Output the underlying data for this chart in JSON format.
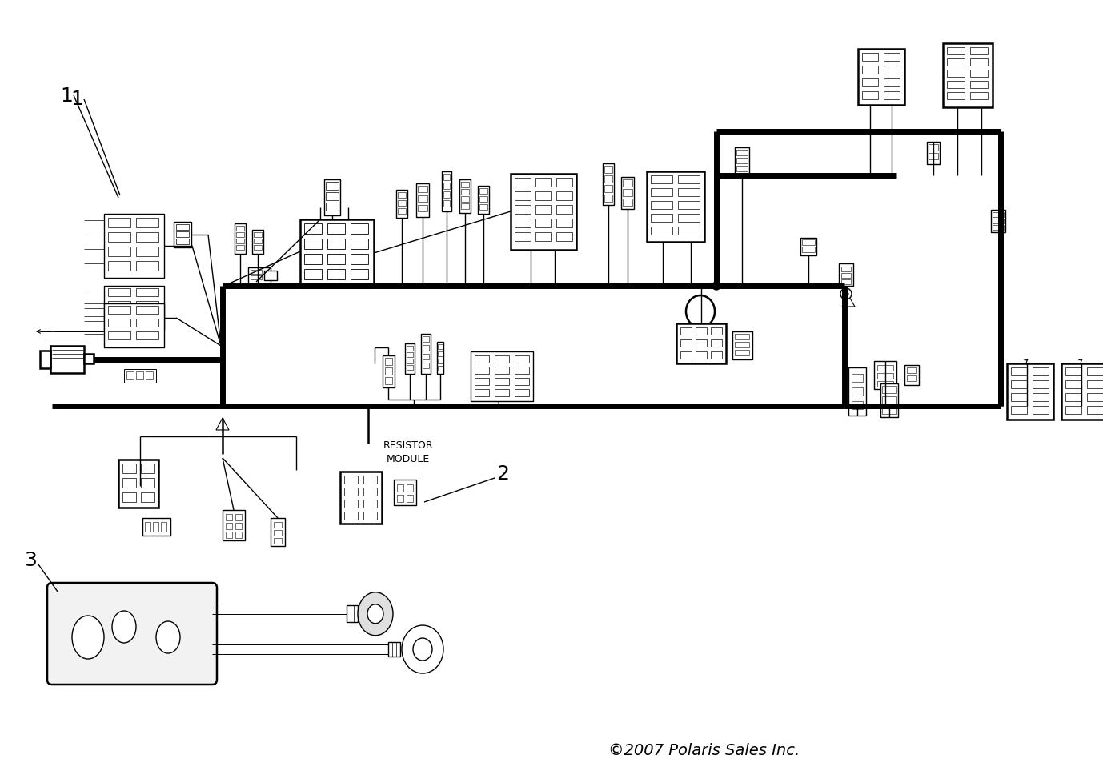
{
  "background_color": "#ffffff",
  "line_color": "#000000",
  "copyright": "©2007 Polaris Sales Inc.",
  "figsize": [
    13.78,
    9.79
  ],
  "dpi": 100
}
